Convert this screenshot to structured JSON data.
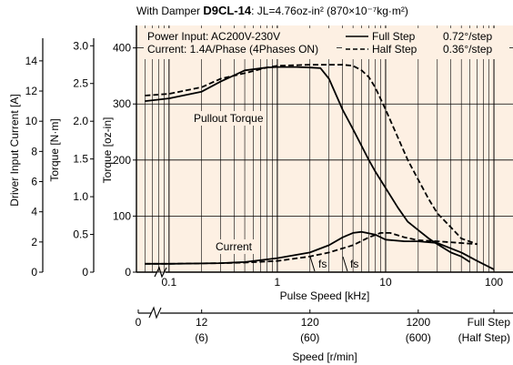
{
  "chart_data": {
    "type": "line",
    "title_prefix": "With Damper ",
    "title_model": "D9CL-14",
    "title_suffix": ": JL=4.76oz-in² (870×10⁻⁷kg·m²)",
    "conditions": [
      "Power Input: AC200V-230V",
      "Current: 1.4A/Phase (4Phases ON)"
    ],
    "legend": [
      {
        "label": "Full Step",
        "step": "0.72°/step",
        "dash": false
      },
      {
        "label": "Half Step",
        "step": "0.36°/step",
        "dash": true
      }
    ],
    "x_axis": {
      "label": "Pulse Speed [kHz]",
      "scale": "log",
      "range": [
        0.05,
        150
      ],
      "ticks": [
        {
          "v": 0.1,
          "t": "0.1"
        },
        {
          "v": 1,
          "t": "1"
        },
        {
          "v": 10,
          "t": "10"
        },
        {
          "v": 100,
          "t": "100"
        }
      ]
    },
    "speed_axis": {
      "label": "Speed [r/min]",
      "ticks": [
        {
          "v": 0.0001,
          "t1": "0",
          "t2": ""
        },
        {
          "v": 0.2,
          "t1": "12",
          "t2": "(6)"
        },
        {
          "v": 2,
          "t1": "120",
          "t2": "(60)"
        },
        {
          "v": 20,
          "t1": "1200",
          "t2": "(600)"
        },
        {
          "v": 100,
          "t1": "Full Step",
          "t2": "(Half Step)"
        }
      ]
    },
    "y_axes": [
      {
        "label": "Torque [oz-in]",
        "range": [
          0,
          440
        ],
        "ticks": [
          "0",
          "100",
          "200",
          "300",
          "400"
        ],
        "values": [
          0,
          100,
          200,
          300,
          400
        ]
      },
      {
        "label": "Torque [N·m]",
        "range": [
          0,
          3.1
        ],
        "ticks": [
          "0",
          "0.5",
          "1.0",
          "1.5",
          "2.0",
          "2.5",
          "3.0"
        ],
        "values": [
          0,
          0.5,
          1.0,
          1.5,
          2.0,
          2.5,
          3.0
        ]
      },
      {
        "label": "Driver Input Current [A]",
        "range": [
          0,
          15.5
        ],
        "ticks": [
          "0",
          "2",
          "4",
          "6",
          "8",
          "10",
          "12",
          "14"
        ],
        "values": [
          0,
          2,
          4,
          6,
          8,
          10,
          12,
          14
        ]
      }
    ],
    "annotations": {
      "pullout": "Pullout Torque",
      "current": "Current",
      "fs": "fs"
    },
    "series": [
      {
        "name": "Full Step",
        "kind": "pullout",
        "dash": false,
        "x": [
          0.06,
          0.1,
          0.2,
          0.3,
          0.5,
          0.8,
          1.0,
          1.5,
          2.0,
          2.5,
          3.0,
          4.0,
          5.0,
          6.0,
          7.0,
          8.0,
          10,
          13,
          16,
          20,
          25,
          30,
          40,
          50,
          60
        ],
        "y": [
          305,
          310,
          322,
          340,
          360,
          365,
          366,
          366,
          365,
          364,
          345,
          290,
          255,
          225,
          200,
          180,
          150,
          115,
          90,
          75,
          60,
          50,
          35,
          28,
          18
        ]
      },
      {
        "name": "Half Step",
        "kind": "pullout",
        "dash": true,
        "x": [
          0.06,
          0.1,
          0.2,
          0.3,
          0.5,
          0.8,
          1.0,
          2.0,
          3.0,
          4.0,
          5.0,
          6.0,
          7.0,
          8.0,
          10,
          13,
          16,
          20,
          25,
          30,
          40,
          50,
          70
        ],
        "y": [
          315,
          318,
          330,
          345,
          355,
          365,
          368,
          370,
          370,
          370,
          368,
          360,
          348,
          330,
          290,
          240,
          200,
          165,
          130,
          105,
          80,
          60,
          50
        ]
      },
      {
        "name": "Full Step",
        "kind": "current",
        "dash": false,
        "x": [
          0.06,
          0.1,
          0.3,
          0.5,
          1.0,
          2.0,
          3.0,
          4.0,
          5.0,
          6.0,
          8.0,
          10,
          15,
          20,
          30,
          50,
          70,
          100
        ],
        "y": [
          15,
          15,
          16,
          18,
          25,
          35,
          48,
          62,
          70,
          72,
          67,
          58,
          55,
          55,
          52,
          35,
          20,
          5
        ]
      },
      {
        "name": "Half Step",
        "kind": "current",
        "dash": true,
        "x": [
          0.06,
          0.1,
          0.3,
          0.5,
          1.0,
          2.0,
          3.0,
          5.0,
          7.0,
          9.0,
          11,
          15,
          20,
          30,
          50,
          70
        ],
        "y": [
          15,
          15,
          16,
          17,
          20,
          28,
          35,
          48,
          62,
          70,
          70,
          62,
          57,
          55,
          52,
          50
        ]
      }
    ]
  }
}
